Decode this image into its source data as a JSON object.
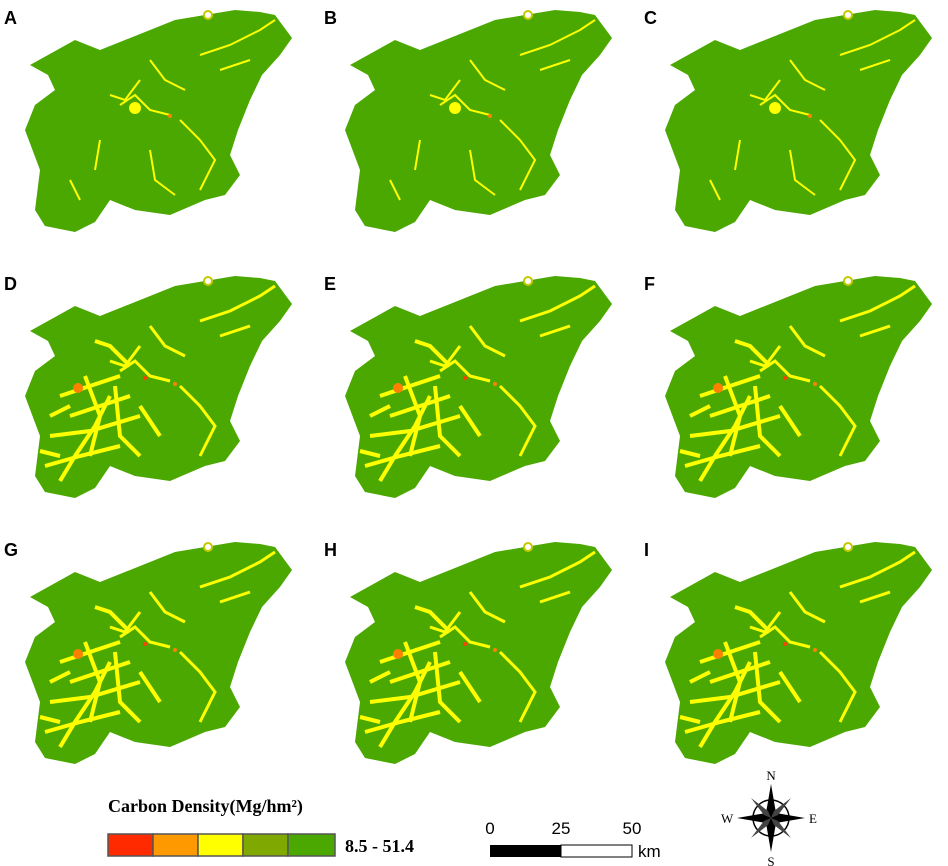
{
  "panels": [
    {
      "label": "A"
    },
    {
      "label": "B"
    },
    {
      "label": "C"
    },
    {
      "label": "D"
    },
    {
      "label": "E"
    },
    {
      "label": "F"
    },
    {
      "label": "G"
    },
    {
      "label": "H"
    },
    {
      "label": "I"
    }
  ],
  "legend": {
    "title": "Carbon Density(Mg/hm²)",
    "range": "8.5 - 51.4"
  },
  "scale_bar": {
    "ticks": [
      0,
      25,
      50
    ],
    "unit": "km"
  },
  "compass": {
    "north": "N",
    "south": "S",
    "east": "E",
    "west": "W"
  }
}
